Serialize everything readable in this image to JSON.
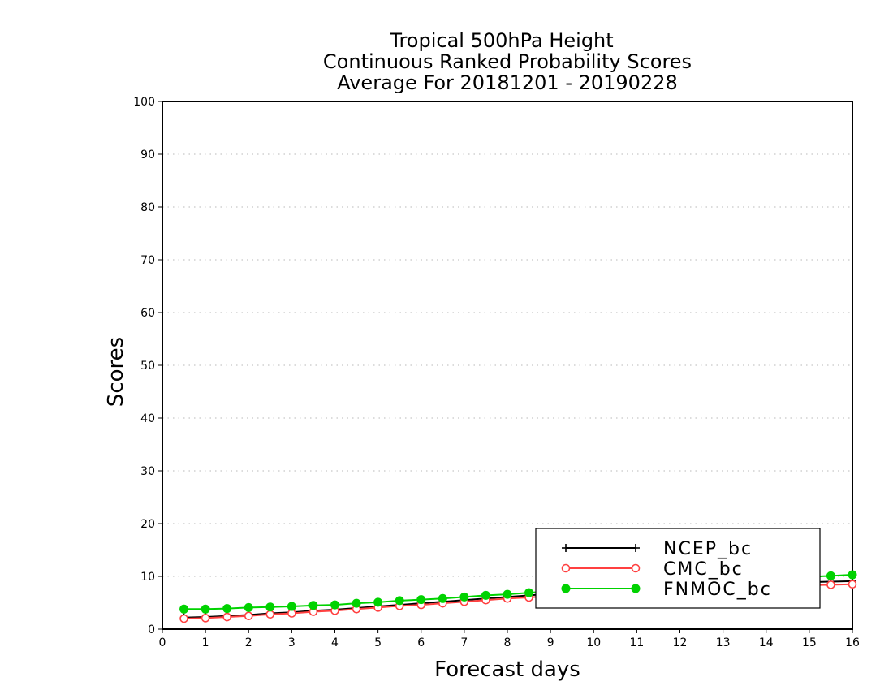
{
  "chart_data": {
    "type": "line",
    "title_lines": [
      "Tropical 500hPa Height",
      "Continuous Ranked Probability Scores",
      "Average For 20181201 - 20190228"
    ],
    "xlabel": "Forecast days",
    "ylabel": "Scores",
    "xlim": [
      0,
      16
    ],
    "ylim": [
      0,
      100
    ],
    "xticks": [
      0,
      1,
      2,
      3,
      4,
      5,
      6,
      7,
      8,
      9,
      10,
      11,
      12,
      13,
      14,
      15,
      16
    ],
    "yticks": [
      0,
      10,
      20,
      30,
      40,
      50,
      60,
      70,
      80,
      90,
      100
    ],
    "grid": "horizontal dotted",
    "legend_position": "bottom-right",
    "x": [
      0.5,
      1,
      1.5,
      2,
      2.5,
      3,
      3.5,
      4,
      4.5,
      5,
      5.5,
      6,
      6.5,
      7,
      7.5,
      8,
      8.5,
      9,
      9.5,
      10,
      10.5,
      11,
      11.5,
      12,
      12.5,
      13,
      13.5,
      14,
      14.5,
      15,
      15.5,
      16
    ],
    "series": [
      {
        "name": "NCEP_bc",
        "color": "#000000",
        "marker": "plus",
        "values": [
          2.2,
          2.3,
          2.5,
          2.7,
          3.0,
          3.2,
          3.5,
          3.7,
          4.0,
          4.3,
          4.6,
          4.9,
          5.2,
          5.5,
          5.8,
          6.1,
          6.4,
          6.7,
          7.0,
          7.2,
          7.4,
          7.6,
          7.8,
          8.0,
          8.2,
          8.4,
          8.6,
          8.7,
          8.8,
          8.9,
          9.0,
          9.1
        ]
      },
      {
        "name": "CMC_bc",
        "color": "#ff4040",
        "marker": "open-circle",
        "values": [
          2.0,
          2.1,
          2.3,
          2.5,
          2.8,
          3.0,
          3.3,
          3.5,
          3.8,
          4.1,
          4.4,
          4.6,
          4.9,
          5.2,
          5.5,
          5.8,
          6.0,
          6.3,
          6.5,
          6.7,
          6.9,
          7.1,
          7.3,
          7.5,
          7.7,
          7.8,
          8.0,
          8.1,
          8.2,
          8.3,
          8.4,
          8.5
        ]
      },
      {
        "name": "FNMOC_bc",
        "color": "#00d200",
        "marker": "filled-circle",
        "values": [
          3.8,
          3.8,
          3.9,
          4.1,
          4.2,
          4.3,
          4.5,
          4.6,
          4.9,
          5.1,
          5.4,
          5.6,
          5.8,
          6.1,
          6.4,
          6.6,
          6.9,
          7.2,
          7.5,
          7.8,
          8.0,
          8.3,
          8.5,
          8.7,
          8.9,
          9.1,
          9.3,
          9.5,
          9.7,
          9.9,
          10.1,
          10.3
        ]
      }
    ]
  }
}
